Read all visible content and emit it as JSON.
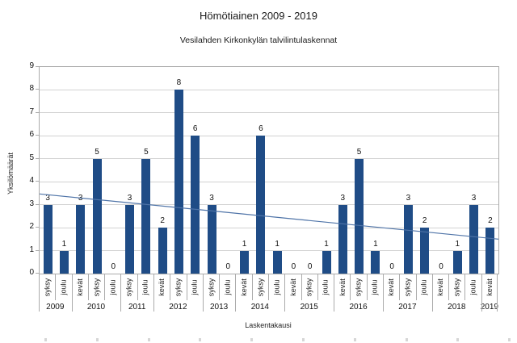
{
  "chart_data": {
    "type": "bar",
    "title": "Hömötiainen 2009 - 2019",
    "subtitle": "Vesilahden Kirkonkylän talvilintulaskennat",
    "xlabel": "Laskentakausi",
    "ylabel": "Yksilömäärät",
    "ylim": [
      0,
      9
    ],
    "yticks": [
      0,
      1,
      2,
      3,
      4,
      5,
      6,
      7,
      8,
      9
    ],
    "grid": true,
    "legend": false,
    "value_labels": true,
    "categories": [
      "2009 syksy",
      "2009 joulu",
      "2010 kevät",
      "2010 syksy",
      "2010 joulu",
      "2011 syksy",
      "2011 joulu",
      "2012 kevät",
      "2012 syksy",
      "2012 joulu",
      "2013 syksy",
      "2013 joulu",
      "2014 kevät",
      "2014 syksy",
      "2014 joulu",
      "2015 kevät",
      "2015 syksy",
      "2015 joulu",
      "2016 kevät",
      "2016 syksy",
      "2016 joulu",
      "2017 kevät",
      "2017 syksy",
      "2017 joulu",
      "2018 kevät",
      "2018 syksy",
      "2018 joulu",
      "2019 kevät"
    ],
    "values": [
      3,
      1,
      3,
      5,
      0,
      3,
      5,
      2,
      8,
      6,
      3,
      0,
      1,
      6,
      1,
      0,
      0,
      1,
      3,
      5,
      1,
      0,
      3,
      2,
      0,
      1,
      3,
      2
    ],
    "groups": [
      {
        "year": "2009",
        "seasons": [
          {
            "label": "syksy",
            "value": 3
          },
          {
            "label": "joulu",
            "value": 1
          }
        ]
      },
      {
        "year": "2010",
        "seasons": [
          {
            "label": "kevät",
            "value": 3
          },
          {
            "label": "syksy",
            "value": 5
          },
          {
            "label": "joulu",
            "value": 0
          }
        ]
      },
      {
        "year": "2011",
        "seasons": [
          {
            "label": "syksy",
            "value": 3
          },
          {
            "label": "joulu",
            "value": 5
          }
        ]
      },
      {
        "year": "2012",
        "seasons": [
          {
            "label": "kevät",
            "value": 2
          },
          {
            "label": "syksy",
            "value": 8
          },
          {
            "label": "joulu",
            "value": 6
          }
        ]
      },
      {
        "year": "2013",
        "seasons": [
          {
            "label": "syksy",
            "value": 3
          },
          {
            "label": "joulu",
            "value": 0
          }
        ]
      },
      {
        "year": "2014",
        "seasons": [
          {
            "label": "kevät",
            "value": 1
          },
          {
            "label": "syksy",
            "value": 6
          },
          {
            "label": "joulu",
            "value": 1
          }
        ]
      },
      {
        "year": "2015",
        "seasons": [
          {
            "label": "kevät",
            "value": 0
          },
          {
            "label": "syksy",
            "value": 0
          },
          {
            "label": "joulu",
            "value": 1
          }
        ]
      },
      {
        "year": "2016",
        "seasons": [
          {
            "label": "kevät",
            "value": 3
          },
          {
            "label": "syksy",
            "value": 5
          },
          {
            "label": "joulu",
            "value": 1
          }
        ]
      },
      {
        "year": "2017",
        "seasons": [
          {
            "label": "kevät",
            "value": 0
          },
          {
            "label": "syksy",
            "value": 3
          },
          {
            "label": "joulu",
            "value": 2
          }
        ]
      },
      {
        "year": "2018",
        "seasons": [
          {
            "label": "kevät",
            "value": 0
          },
          {
            "label": "syksy",
            "value": 1
          },
          {
            "label": "joulu",
            "value": 3
          }
        ]
      },
      {
        "year": "2019",
        "seasons": [
          {
            "label": "kevät",
            "value": 2
          }
        ]
      }
    ],
    "trendline": {
      "type": "linear",
      "start_value": 3.47,
      "end_value": 1.5
    },
    "colors": {
      "bar": "#1F4C86",
      "trend": "#4F74A8",
      "grid": "#D2D2D2",
      "axis": "#ABABAB",
      "text": "#1A1A1A"
    }
  }
}
